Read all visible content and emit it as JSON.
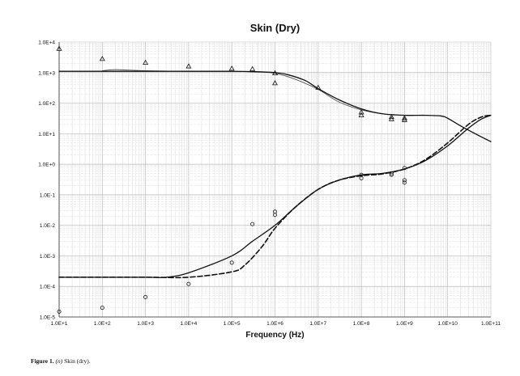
{
  "chart_data": {
    "type": "line",
    "title": "Skin (Dry)",
    "xlabel": "Frequency  (Hz)",
    "ylabel": "",
    "x_scale": "log",
    "y_scale": "log",
    "xlim": [
      10,
      100000000000
    ],
    "ylim": [
      1e-05,
      10000
    ],
    "x_ticks": [
      "1.0E+1",
      "1.0E+2",
      "1.0E+3",
      "1.0E+4",
      "1.0E+5",
      "1.0E+6",
      "1.0E+7",
      "1.0E+8",
      "1.0E+9",
      "1.0E+10",
      "1.0E+11"
    ],
    "y_ticks": [
      "1.0E-5",
      "1.0E-4",
      "1.0E-3",
      "1.0E-2",
      "1.0E-1",
      "1.0E+0",
      "1.0E+1",
      "1.0E+2",
      "1.0E+3",
      "1.0E+4"
    ],
    "grid": true,
    "series": [
      {
        "style": "solid-thin-gray",
        "color": "#555555",
        "x": [
          100,
          200,
          1000,
          10000,
          100000,
          300000,
          1000000,
          3000000,
          10000000,
          30000000,
          100000000,
          300000000
        ],
        "y": [
          1150,
          1250,
          1150,
          1100,
          1100,
          1050,
          950,
          600,
          280,
          110,
          60,
          45
        ]
      },
      {
        "style": "solid",
        "color": "#111111",
        "x": [
          10,
          1000,
          10000,
          100000,
          300000,
          1000000,
          2000000,
          5000000,
          10000000,
          30000000,
          100000000,
          300000000,
          1000000000,
          3000000000,
          7000000000,
          10000000000,
          20000000000,
          50000000000,
          100000000000
        ],
        "y": [
          1100,
          1100,
          1100,
          1100,
          1080,
          1000,
          850,
          550,
          300,
          130,
          65,
          45,
          40,
          40,
          38,
          32,
          18,
          9,
          5.5
        ]
      },
      {
        "style": "solid",
        "color": "#111111",
        "x": [
          10,
          1000,
          3000,
          10000,
          100000,
          300000,
          1000000,
          3000000,
          10000000,
          30000000,
          100000000,
          300000000,
          1000000000,
          3000000000,
          10000000000,
          30000000000,
          60000000000,
          100000000000
        ],
        "y": [
          0.0002,
          0.0002,
          0.0002,
          0.00028,
          0.001,
          0.003,
          0.01,
          0.04,
          0.15,
          0.3,
          0.45,
          0.5,
          0.7,
          1.3,
          4,
          15,
          30,
          40
        ]
      },
      {
        "style": "dashed",
        "color": "#111111",
        "x": [
          10,
          1000,
          10000,
          100000,
          200000,
          500000,
          1000000,
          3000000,
          10000000,
          30000000,
          100000000,
          300000000,
          1000000000,
          3000000000,
          10000000000,
          30000000000,
          60000000000,
          100000000000
        ],
        "y": [
          0.0002,
          0.0002,
          0.0002,
          0.0003,
          0.0005,
          0.002,
          0.008,
          0.04,
          0.15,
          0.3,
          0.42,
          0.48,
          0.7,
          1.4,
          5,
          20,
          35,
          40
        ]
      },
      {
        "style": "triangles",
        "color": "#111111",
        "x": [
          10,
          100,
          1000,
          10000,
          100000,
          300000,
          1000000,
          1000000,
          10000000,
          100000000,
          100000000,
          500000000,
          500000000,
          1000000000,
          1000000000
        ],
        "y": [
          6000,
          2800,
          2100,
          1600,
          1350,
          1300,
          950,
          450,
          320,
          50,
          40,
          35,
          30,
          32,
          28
        ]
      },
      {
        "style": "circles",
        "color": "#111111",
        "x": [
          10,
          100,
          1000,
          10000,
          100000,
          300000,
          1000000,
          1000000,
          100000000,
          100000000,
          500000000,
          500000000,
          1000000000,
          1000000000,
          1000000000
        ],
        "y": [
          1.5e-05,
          2e-05,
          4.5e-05,
          0.00012,
          0.0006,
          0.011,
          0.022,
          0.028,
          0.35,
          0.45,
          0.45,
          0.5,
          0.25,
          0.3,
          0.75
        ]
      }
    ]
  },
  "caption": {
    "label": "Figure 1.",
    "sym": "(n)",
    "text": " Skin (dry)."
  }
}
